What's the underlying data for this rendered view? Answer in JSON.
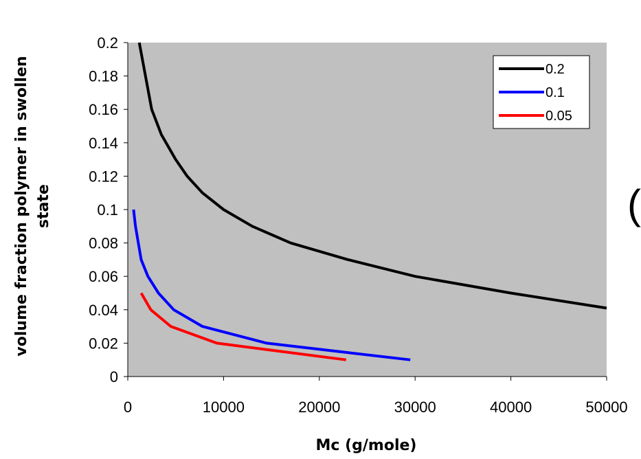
{
  "chart_data": {
    "type": "line",
    "title": "",
    "xlabel": "Mc (g/mole)",
    "ylabel_line1": "volume fraction polymer in swollen",
    "ylabel_line2": "state",
    "xlim": [
      0,
      50000
    ],
    "ylim": [
      0,
      0.2
    ],
    "x_ticks": [
      "0",
      "10000",
      "20000",
      "30000",
      "40000",
      "50000"
    ],
    "y_ticks": [
      "0",
      "0.02",
      "0.04",
      "0.06",
      "0.08",
      "0.1",
      "0.12",
      "0.14",
      "0.16",
      "0.18",
      "0.2"
    ],
    "plot_background": "#c0c0c0",
    "grid": false,
    "legend_position": "top-right",
    "series": [
      {
        "name": "0.2",
        "color": "#000000",
        "points": [
          [
            1200,
            0.2
          ],
          [
            2500,
            0.16
          ],
          [
            3500,
            0.145
          ],
          [
            5000,
            0.13
          ],
          [
            6200,
            0.12
          ],
          [
            7800,
            0.11
          ],
          [
            10000,
            0.1
          ],
          [
            13000,
            0.09
          ],
          [
            17000,
            0.08
          ],
          [
            23000,
            0.07
          ],
          [
            30000,
            0.06
          ],
          [
            40000,
            0.05
          ],
          [
            50000,
            0.041
          ]
        ]
      },
      {
        "name": "0.1",
        "color": "#0000ff",
        "points": [
          [
            600,
            0.1
          ],
          [
            800,
            0.09
          ],
          [
            1400,
            0.07
          ],
          [
            2100,
            0.06
          ],
          [
            3200,
            0.05
          ],
          [
            4800,
            0.04
          ],
          [
            7800,
            0.03
          ],
          [
            14500,
            0.02
          ],
          [
            29500,
            0.01
          ]
        ]
      },
      {
        "name": "0.05",
        "color": "#ff0000",
        "points": [
          [
            1400,
            0.05
          ],
          [
            2400,
            0.04
          ],
          [
            4500,
            0.03
          ],
          [
            9300,
            0.02
          ],
          [
            22800,
            0.01
          ]
        ]
      }
    ]
  },
  "decor": {
    "partial_glyph": "("
  }
}
